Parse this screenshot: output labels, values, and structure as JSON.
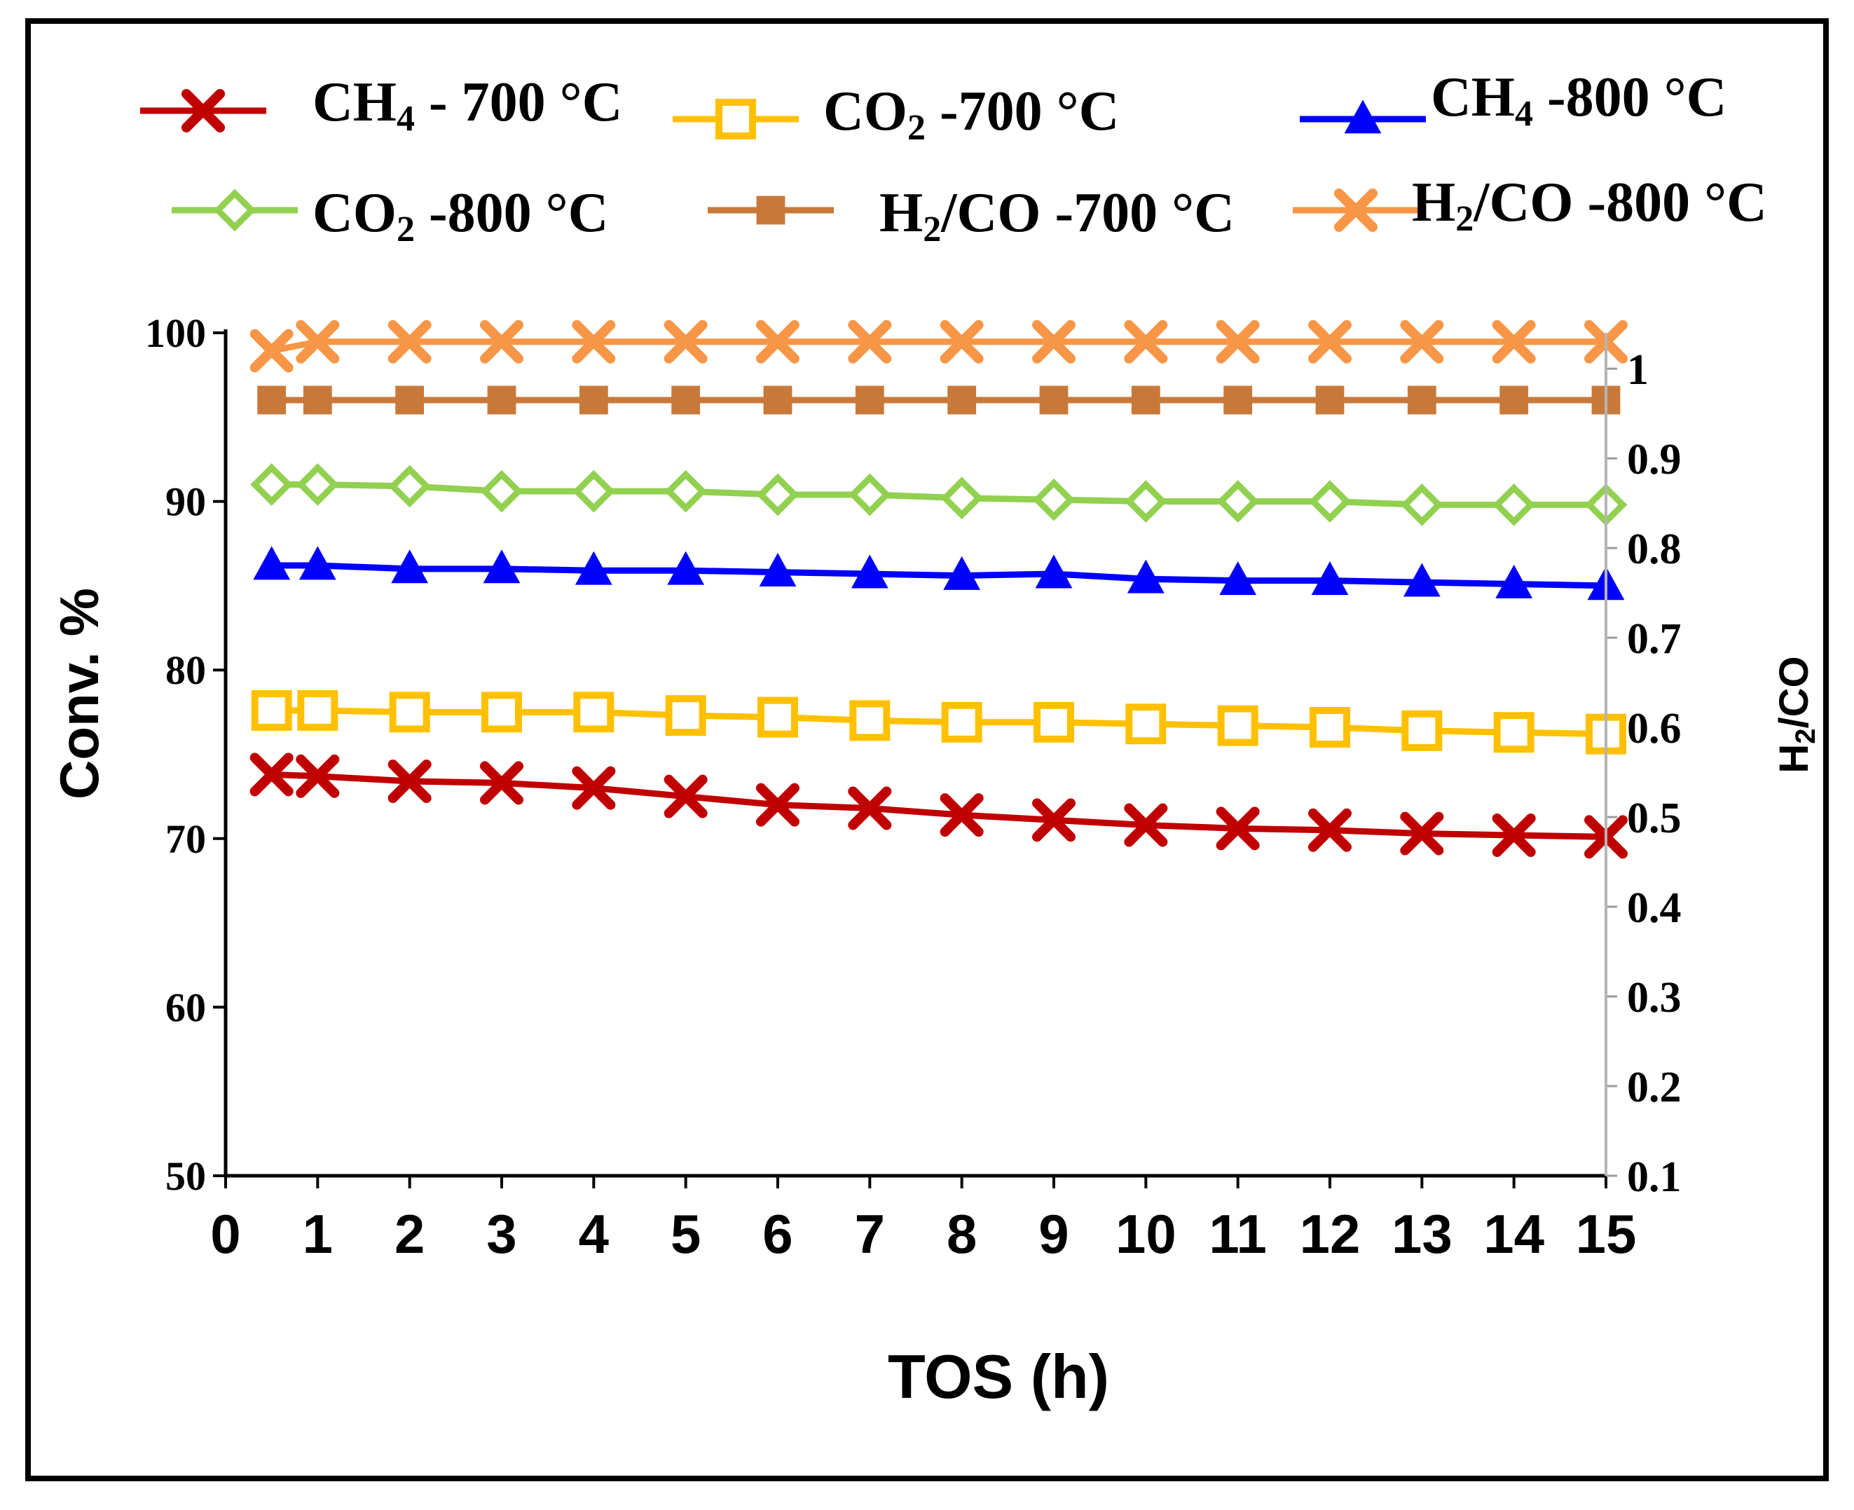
{
  "chart_data": {
    "type": "line",
    "xlabel": "TOS (h)",
    "ylabel": "Conv. %",
    "y2label": "H2/CO",
    "xlim": [
      0,
      15
    ],
    "ylim": [
      50,
      100
    ],
    "y2lim": [
      0.1,
      1.04
    ],
    "x_ticks": [
      "0",
      "1",
      "2",
      "3",
      "4",
      "5",
      "6",
      "7",
      "8",
      "9",
      "10",
      "11",
      "12",
      "13",
      "14",
      "15"
    ],
    "y_ticks": [
      "50",
      "60",
      "70",
      "80",
      "90",
      "100"
    ],
    "y2_ticks": [
      "0.1",
      "0.2",
      "0.3",
      "0.4",
      "0.5",
      "0.6",
      "0.7",
      "0.8",
      "0.9",
      "1"
    ],
    "x": [
      0.5,
      1,
      2,
      3,
      4,
      5,
      6,
      7,
      8,
      9,
      10,
      11,
      12,
      13,
      14,
      15
    ],
    "series": [
      {
        "name": "CH4 - 700 °C",
        "legend_main": "CH",
        "legend_sub": "4",
        "legend_suffix": " - 700 °C",
        "color": "#c00000",
        "marker": "x",
        "axis": "left",
        "values": [
          73.8,
          73.7,
          73.4,
          73.3,
          73.0,
          72.5,
          72.0,
          71.8,
          71.4,
          71.1,
          70.8,
          70.6,
          70.5,
          70.3,
          70.2,
          70.1
        ]
      },
      {
        "name": "CO2 -700 °C",
        "legend_main": "CO",
        "legend_sub": "2",
        "legend_suffix": "  -700 °C",
        "color": "#ffc000",
        "marker": "square-open",
        "axis": "left",
        "values": [
          77.6,
          77.6,
          77.5,
          77.5,
          77.5,
          77.3,
          77.2,
          77.0,
          76.9,
          76.9,
          76.8,
          76.7,
          76.6,
          76.4,
          76.3,
          76.2
        ]
      },
      {
        "name": "CH4 -800 °C",
        "legend_main": "CH",
        "legend_sub": "4",
        "legend_suffix": " -800 °C",
        "color": "#0000ff",
        "marker": "triangle",
        "axis": "left",
        "values": [
          86.2,
          86.2,
          86.0,
          86.0,
          85.9,
          85.9,
          85.8,
          85.7,
          85.6,
          85.7,
          85.4,
          85.3,
          85.3,
          85.2,
          85.1,
          85.0
        ]
      },
      {
        "name": "CO2 -800 °C",
        "legend_main": "CO",
        "legend_sub": "2",
        "legend_suffix": " -800 °C",
        "color": "#92d050",
        "marker": "diamond-open",
        "axis": "left",
        "values": [
          91.0,
          91.0,
          90.9,
          90.6,
          90.6,
          90.6,
          90.4,
          90.4,
          90.2,
          90.1,
          90.0,
          90.0,
          90.0,
          89.8,
          89.8,
          89.8
        ]
      },
      {
        "name": "H2/CO -700 °C",
        "legend_main": "H",
        "legend_sub": "2",
        "legend_suffix": "/CO -700 °C",
        "color": "#c8793a",
        "marker": "square",
        "axis": "right",
        "values": [
          0.965,
          0.965,
          0.965,
          0.965,
          0.965,
          0.965,
          0.965,
          0.965,
          0.965,
          0.965,
          0.965,
          0.965,
          0.965,
          0.965,
          0.965,
          0.965
        ]
      },
      {
        "name": "H2/CO -800 °C",
        "legend_main": "H",
        "legend_sub": "2",
        "legend_suffix": "/CO -800 °C",
        "color": "#f79646",
        "marker": "x",
        "axis": "right",
        "values": [
          1.02,
          1.03,
          1.03,
          1.03,
          1.03,
          1.03,
          1.03,
          1.03,
          1.03,
          1.03,
          1.03,
          1.03,
          1.03,
          1.03,
          1.03,
          1.03
        ]
      }
    ]
  }
}
